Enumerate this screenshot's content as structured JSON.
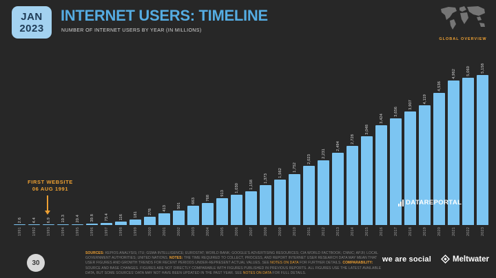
{
  "header": {
    "date_badge": {
      "line1": "JAN",
      "line2": "2023"
    },
    "title": "INTERNET USERS: TIMELINE",
    "subtitle": "NUMBER OF INTERNET USERS BY YEAR (IN MILLIONS)",
    "overview_label": "GLOBAL OVERVIEW"
  },
  "annotation": {
    "line1": "FIRST WEBSITE",
    "line2": "06 AUG 1991"
  },
  "watermark": "DATAREPORTAL",
  "chart_data": {
    "type": "bar",
    "title": "INTERNET USERS: TIMELINE",
    "subtitle": "NUMBER OF INTERNET USERS BY YEAR (IN MILLIONS)",
    "unit": "millions of internet users",
    "categories": [
      "1991",
      "1992",
      "1993",
      "1994",
      "1995",
      "1996",
      "1997",
      "1998",
      "1999",
      "2000",
      "2001",
      "2002",
      "2003",
      "2004",
      "2005",
      "2006",
      "2007",
      "2008",
      "2009",
      "2010",
      "2011",
      "2012",
      "2013",
      "2014",
      "2015",
      "2016",
      "2017",
      "2018",
      "2019",
      "2020",
      "2021",
      "2022",
      "2023"
    ],
    "values": [
      2.6,
      4.4,
      6.9,
      10.3,
      20.4,
      39.8,
      73.4,
      116,
      181,
      278,
      413,
      501,
      663,
      768,
      913,
      1030,
      1158,
      1373,
      1562,
      1752,
      2023,
      2231,
      2494,
      2728,
      3048,
      3424,
      3656,
      3907,
      4119,
      4536,
      4962,
      5060,
      5158
    ],
    "labels": [
      "2.6",
      "4.4",
      "6.9",
      "10.3",
      "20.4",
      "39.8",
      "73.4",
      "116",
      "181",
      "278",
      "413",
      "501",
      "663",
      "768",
      "913",
      "1,030",
      "1,158",
      "1,373",
      "1,562",
      "1,752",
      "2,023",
      "2,231",
      "2,494",
      "2,728",
      "3,048",
      "3,424",
      "3,656",
      "3,907",
      "4,119",
      "4,536",
      "4,962",
      "5,060",
      "5,158"
    ],
    "ylim": [
      0,
      5158
    ],
    "grid": false,
    "legend": "none",
    "bar_color": "#7CC5F2",
    "value_label_rotation": 90,
    "x_label_rotation": 90
  },
  "footer": {
    "slide_number": "30",
    "segments": [
      {
        "t": "SOURCES:",
        "s": "key"
      },
      {
        "t": " KEPIOS ANALYSIS; ITU; GSMA INTELLIGENCE; EUROSTAT; WORLD BANK; GOOGLE'S ADVERTISING RESOURCES; CIA WORLD FACTBOOK; CNNIC; APJII; LOCAL GOVERNMENT AUTHORITIES; UNITED NATIONS. ",
        "s": "normal"
      },
      {
        "t": "NOTES:",
        "s": "key"
      },
      {
        "t": " THE TIME REQUIRED TO COLLECT, PROCESS, AND REPORT INTERNET USER RESEARCH DATA MAY MEAN THAT USER FIGURES AND GROWTH TRENDS FOR RECENT PERIODS UNDER-REPRESENT ACTUAL VALUES. SEE ",
        "s": "normal"
      },
      {
        "t": "NOTES ON DATA",
        "s": "link"
      },
      {
        "t": " FOR FURTHER DETAILS. ",
        "s": "normal"
      },
      {
        "t": "COMPARABILITY:",
        "s": "key"
      },
      {
        "t": " SOURCE AND BASE CHANGES. FIGURES ARE NOT DIRECTLY COMPARABLE WITH FIGURES PUBLISHED IN PREVIOUS REPORTS. ALL FIGURES USE THE LATEST AVAILABLE DATA, BUT SOME SOURCES' DATA MAY NOT HAVE BEEN UPDATED IN THE PAST YEAR. SEE ",
        "s": "normal"
      },
      {
        "t": "NOTES ON DATA",
        "s": "link"
      },
      {
        "t": " FOR FULL DETAILS.",
        "s": "normal"
      }
    ],
    "logos": {
      "we_are_social": "we are social",
      "meltwater": "Meltwater"
    }
  },
  "colors": {
    "background": "#272727",
    "bar": "#7CC5F2",
    "title_blue": "#55ACE2",
    "badge_blue": "#A3D2F0",
    "accent_orange": "#EDA033",
    "text_gray": "#858585"
  }
}
